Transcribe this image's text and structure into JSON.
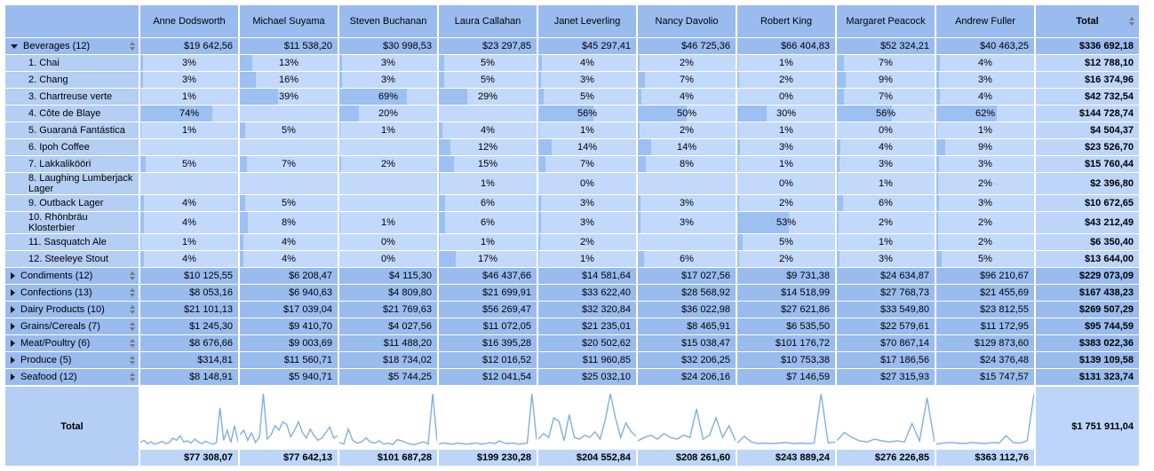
{
  "header": {
    "columns": [
      "Anne Dodsworth",
      "Michael Suyama",
      "Steven Buchanan",
      "Laura Callahan",
      "Janet Leverling",
      "Nancy Davolio",
      "Robert King",
      "Margaret Peacock",
      "Andrew Fuller"
    ],
    "total_label": "Total"
  },
  "rows": [
    {
      "type": "category",
      "label": "Beverages (12)",
      "expanded": true,
      "values": [
        "$19 642,56",
        "$11 538,20",
        "$30 998,53",
        "$23 297,85",
        "$45 297,41",
        "$46 725,36",
        "$66 404,83",
        "$52 324,21",
        "$40 463,25"
      ],
      "total": "$336 692,18"
    },
    {
      "type": "product",
      "label": "1. Chai",
      "pcts": [
        "3%",
        "13%",
        "3%",
        "5%",
        "4%",
        "2%",
        "1%",
        "7%",
        "4%"
      ],
      "total": "$12 788,10"
    },
    {
      "type": "product",
      "label": "2. Chang",
      "pcts": [
        "3%",
        "16%",
        "3%",
        "5%",
        "3%",
        "7%",
        "2%",
        "9%",
        "3%"
      ],
      "total": "$16 374,96"
    },
    {
      "type": "product",
      "label": "3. Chartreuse verte",
      "pcts": [
        "1%",
        "39%",
        "69%",
        "29%",
        "5%",
        "4%",
        "0%",
        "7%",
        "4%"
      ],
      "total": "$42 732,54"
    },
    {
      "type": "product",
      "label": "4. Côte de Blaye",
      "pcts": [
        "74%",
        null,
        "20%",
        null,
        "56%",
        "50%",
        "30%",
        "56%",
        "62%"
      ],
      "total": "$144 728,74"
    },
    {
      "type": "product",
      "label": "5. Guaraná Fantástica",
      "pcts": [
        "1%",
        "5%",
        "1%",
        "4%",
        "1%",
        "2%",
        "1%",
        "0%",
        "1%"
      ],
      "total": "$4 504,37"
    },
    {
      "type": "product",
      "label": "6. Ipoh Coffee",
      "pcts": [
        null,
        null,
        null,
        "12%",
        "14%",
        "14%",
        "3%",
        "4%",
        "9%"
      ],
      "total": "$23 526,70"
    },
    {
      "type": "product",
      "label": "7. Lakkalikööri",
      "pcts": [
        "5%",
        "7%",
        "2%",
        "15%",
        "7%",
        "8%",
        "1%",
        "3%",
        "3%"
      ],
      "total": "$15 760,44"
    },
    {
      "type": "product",
      "label": "8. Laughing Lumberjack Lager",
      "pcts": [
        null,
        null,
        null,
        "1%",
        "0%",
        null,
        "0%",
        "1%",
        "2%"
      ],
      "total": "$2 396,80"
    },
    {
      "type": "product",
      "label": "9. Outback Lager",
      "pcts": [
        "4%",
        "5%",
        null,
        "6%",
        "3%",
        "3%",
        "2%",
        "6%",
        "3%"
      ],
      "total": "$10 672,65"
    },
    {
      "type": "product",
      "label": "10. Rhönbräu Klosterbier",
      "pcts": [
        "4%",
        "8%",
        "1%",
        "6%",
        "3%",
        "3%",
        "53%",
        "2%",
        "2%"
      ],
      "total": "$43 212,49"
    },
    {
      "type": "product",
      "label": "11. Sasquatch Ale",
      "pcts": [
        "1%",
        "4%",
        "0%",
        "1%",
        "2%",
        null,
        "5%",
        "1%",
        "2%"
      ],
      "total": "$6 350,40"
    },
    {
      "type": "product",
      "label": "12. Steeleye Stout",
      "pcts": [
        "4%",
        "4%",
        "0%",
        "17%",
        "1%",
        "6%",
        "2%",
        "3%",
        "5%"
      ],
      "total": "$13 644,00"
    },
    {
      "type": "category",
      "label": "Condiments (12)",
      "expanded": false,
      "values": [
        "$10 125,55",
        "$6 208,47",
        "$4 115,30",
        "$46 437,66",
        "$14 581,64",
        "$17 027,56",
        "$9 731,38",
        "$24 634,87",
        "$96 210,67"
      ],
      "total": "$229 073,09"
    },
    {
      "type": "category",
      "label": "Confections (13)",
      "expanded": false,
      "values": [
        "$8 053,16",
        "$6 940,63",
        "$4 809,80",
        "$21 699,91",
        "$33 622,40",
        "$28 568,92",
        "$14 518,99",
        "$27 768,73",
        "$21 455,69"
      ],
      "total": "$167 438,23"
    },
    {
      "type": "category",
      "label": "Dairy Products (10)",
      "expanded": false,
      "values": [
        "$21 101,13",
        "$17 039,04",
        "$21 769,63",
        "$56 269,47",
        "$32 320,84",
        "$36 022,98",
        "$27 621,86",
        "$33 549,80",
        "$23 812,55"
      ],
      "total": "$269 507,29"
    },
    {
      "type": "category",
      "label": "Grains/Cereals (7)",
      "expanded": false,
      "values": [
        "$1 245,30",
        "$9 410,70",
        "$4 027,56",
        "$11 072,05",
        "$21 235,01",
        "$8 465,91",
        "$6 535,50",
        "$22 579,61",
        "$11 172,95"
      ],
      "total": "$95 744,59"
    },
    {
      "type": "category",
      "label": "Meat/Poultry (6)",
      "expanded": false,
      "values": [
        "$8 676,66",
        "$9 003,69",
        "$11 488,20",
        "$16 395,28",
        "$20 502,62",
        "$15 038,47",
        "$101 176,72",
        "$70 867,14",
        "$129 873,60"
      ],
      "total": "$383 022,36"
    },
    {
      "type": "category",
      "label": "Produce (5)",
      "expanded": false,
      "values": [
        "$314,81",
        "$11 560,71",
        "$18 734,02",
        "$12 016,52",
        "$11 960,85",
        "$32 206,25",
        "$10 753,38",
        "$17 186,56",
        "$24 376,48"
      ],
      "total": "$139 109,58"
    },
    {
      "type": "category",
      "label": "Seafood (12)",
      "expanded": false,
      "values": [
        "$8 148,91",
        "$5 940,71",
        "$5 744,25",
        "$12 041,54",
        "$25 032,10",
        "$24 206,16",
        "$7 146,59",
        "$27 315,93",
        "$15 747,57"
      ],
      "total": "$131 323,74"
    }
  ],
  "footer": {
    "label": "Total",
    "totals": [
      "$77 308,07",
      "$77 642,13",
      "$101 687,28",
      "$199 230,28",
      "$204 552,84",
      "$208 261,60",
      "$243 889,24",
      "$276 226,85",
      "$363 112,76"
    ],
    "grand_total": "$1 751 911,04",
    "sparklines": {
      "type": "line",
      "series": [
        {
          "name": "Anne Dodsworth",
          "values": [
            8,
            12,
            6,
            9,
            5,
            7,
            10,
            6,
            8,
            16,
            12,
            20,
            9,
            11,
            7,
            14,
            9,
            6,
            10,
            7,
            5,
            8,
            70,
            12,
            30,
            8,
            38,
            10
          ]
        },
        {
          "name": "Michael Suyama",
          "values": [
            22,
            30,
            12,
            25,
            8,
            18,
            95,
            14,
            22,
            38,
            30,
            45,
            40,
            18,
            30,
            45,
            26,
            16,
            32,
            20,
            12,
            16,
            26,
            36,
            16,
            20
          ]
        },
        {
          "name": "Steven Buchanan",
          "values": [
            8,
            5,
            32,
            12,
            7,
            9,
            16,
            9,
            7,
            11,
            5,
            7,
            4,
            13,
            11,
            8,
            5,
            4,
            7,
            9,
            5,
            95,
            10
          ]
        },
        {
          "name": "Laura Callahan",
          "values": [
            5,
            7,
            6,
            5,
            7,
            6,
            5,
            6,
            7,
            5,
            6,
            8,
            6,
            11,
            7,
            6,
            7,
            5,
            6,
            7,
            95,
            13
          ]
        },
        {
          "name": "Janet Leverling",
          "values": [
            14,
            24,
            17,
            52,
            46,
            11,
            58,
            17,
            14,
            21,
            17,
            27,
            14,
            48,
            95,
            52,
            17,
            43,
            28,
            19
          ]
        },
        {
          "name": "Nancy Davolio",
          "values": [
            11,
            17,
            21,
            14,
            24,
            17,
            14,
            21,
            17,
            68,
            14,
            21,
            52,
            17,
            38,
            11
          ]
        },
        {
          "name": "Robert King",
          "values": [
            7,
            19,
            9,
            6,
            7,
            6,
            7,
            8,
            6,
            7,
            6,
            7,
            95,
            7,
            9
          ]
        },
        {
          "name": "Margaret Peacock",
          "values": [
            11,
            26,
            17,
            11,
            9,
            14,
            11,
            9,
            11,
            9,
            42,
            11,
            88,
            9
          ]
        },
        {
          "name": "Andrew Fuller",
          "values": [
            5,
            7,
            8,
            7,
            6,
            8,
            7,
            6,
            8,
            7,
            20,
            8,
            7,
            11,
            95
          ]
        }
      ]
    }
  },
  "colors": {
    "medium": "#99BBEE",
    "label": "#B4CEF4",
    "cell": "#C2D9FB",
    "bar": "#9CC0F2",
    "totalcell": "#BDD5F9",
    "spark": "#7FAFE6"
  }
}
